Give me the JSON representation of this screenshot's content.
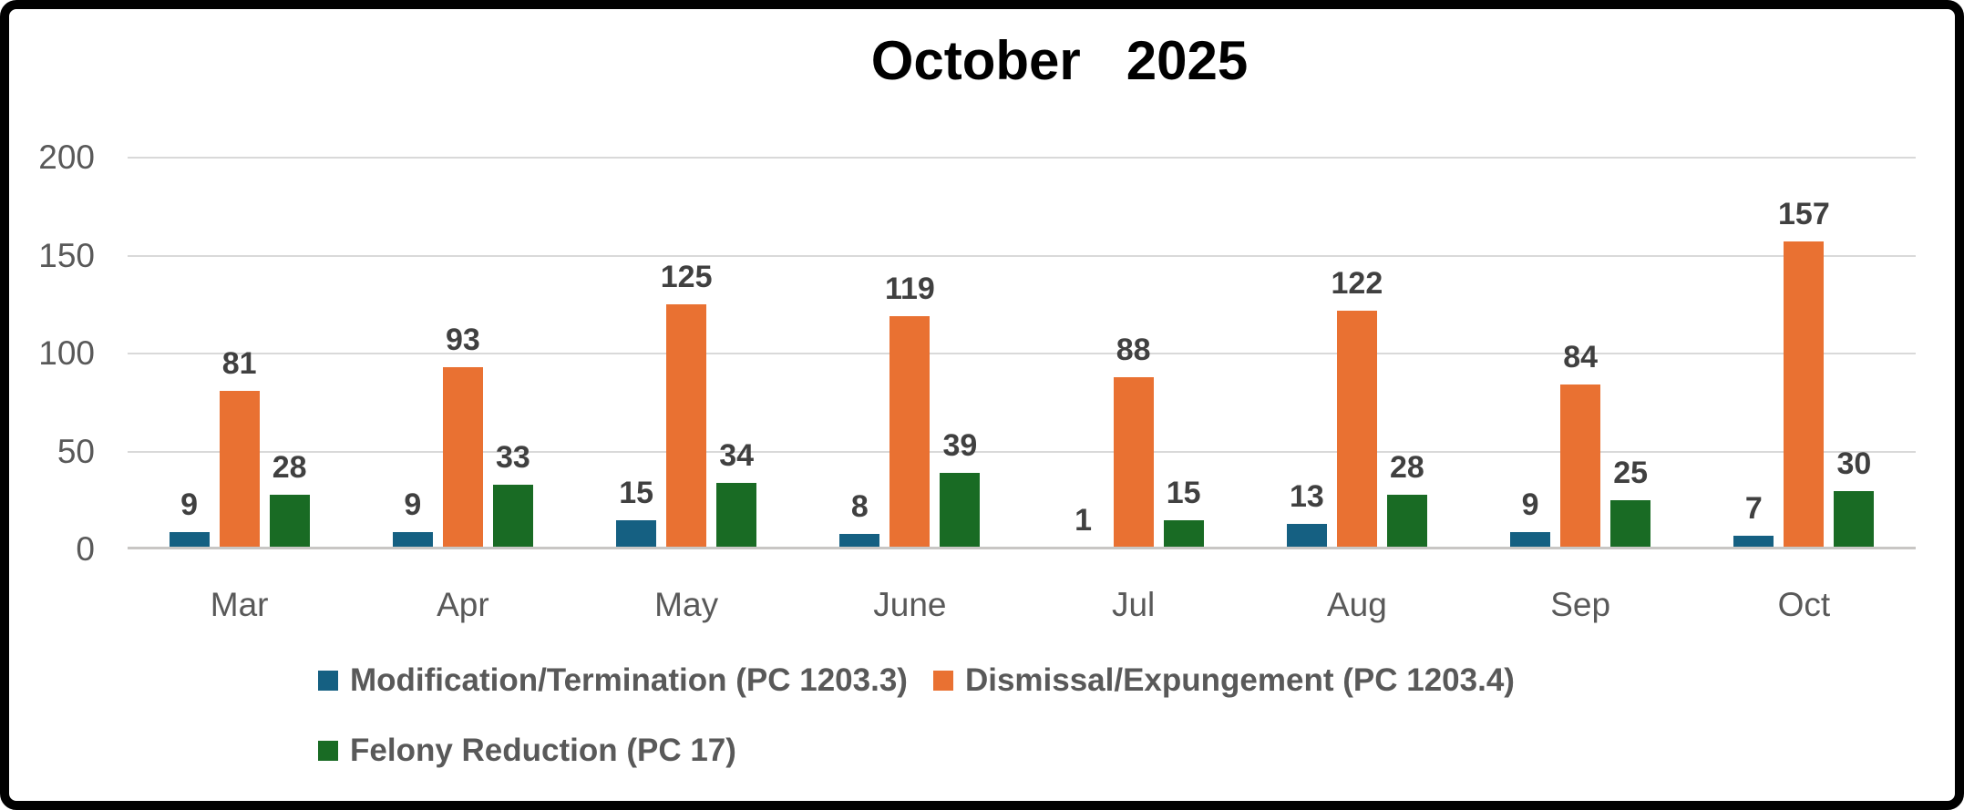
{
  "title": "October   2025",
  "chart_data": {
    "type": "bar",
    "title": "October   2025",
    "categories": [
      "Mar",
      "Apr",
      "May",
      "June",
      "Jul",
      "Aug",
      "Sep",
      "Oct"
    ],
    "series": [
      {
        "name": "Modification/Termination (PC 1203.3)",
        "color": "#156082",
        "values": [
          9,
          9,
          15,
          8,
          1,
          13,
          9,
          7
        ]
      },
      {
        "name": "Dismissal/Expungement (PC 1203.4)",
        "color": "#E97132",
        "values": [
          81,
          93,
          125,
          119,
          88,
          122,
          84,
          157
        ]
      },
      {
        "name": "Felony Reduction (PC 17)",
        "color": "#196B24",
        "values": [
          28,
          33,
          34,
          39,
          15,
          28,
          25,
          30
        ]
      }
    ],
    "xlabel": "",
    "ylabel": "",
    "ylim": [
      0,
      200
    ],
    "yticks": [
      0,
      50,
      100,
      150,
      200
    ],
    "grid": true,
    "legend_position": "bottom",
    "legend_rows": [
      [
        0,
        1
      ],
      [
        2
      ]
    ]
  },
  "style": {
    "gridline_color": "#D9D9D9",
    "axis_line_color": "#C8C6C4",
    "axis_text_color": "#595959",
    "data_label_color": "#404040",
    "title_color": "#000000",
    "frame_border_color": "#000000"
  }
}
